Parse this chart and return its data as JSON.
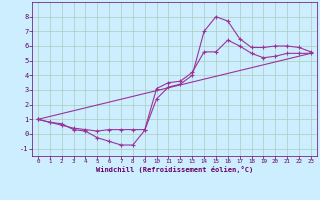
{
  "background_color": "#cceeff",
  "grid_color": "#aaccbb",
  "line_color": "#993399",
  "xlabel": "Windchill (Refroidissement éolien,°C)",
  "xlabel_color": "#660066",
  "tick_color": "#660066",
  "xlim": [
    -0.5,
    23.5
  ],
  "ylim": [
    -1.5,
    9.0
  ],
  "xticks": [
    0,
    1,
    2,
    3,
    4,
    5,
    6,
    7,
    8,
    9,
    10,
    11,
    12,
    13,
    14,
    15,
    16,
    17,
    18,
    19,
    20,
    21,
    22,
    23
  ],
  "yticks": [
    -1,
    0,
    1,
    2,
    3,
    4,
    5,
    6,
    7,
    8
  ],
  "curve1_x": [
    0,
    1,
    2,
    3,
    4,
    5,
    6,
    7,
    8,
    9,
    10,
    11,
    12,
    13,
    14,
    15,
    16,
    17,
    18,
    19,
    20,
    21,
    22,
    23
  ],
  "curve1_y": [
    1.0,
    0.8,
    0.7,
    0.3,
    0.2,
    -0.25,
    -0.5,
    -0.75,
    -0.75,
    0.25,
    2.4,
    3.2,
    3.4,
    4.0,
    7.0,
    8.0,
    7.7,
    6.5,
    5.9,
    5.9,
    6.0,
    6.0,
    5.9,
    5.6
  ],
  "curve2_x": [
    0,
    1,
    2,
    3,
    4,
    5,
    6,
    7,
    8,
    9,
    10,
    11,
    12,
    13,
    14,
    15,
    16,
    17,
    18,
    19,
    20,
    21,
    22,
    23
  ],
  "curve2_y": [
    1.0,
    0.8,
    0.6,
    0.4,
    0.3,
    0.2,
    0.3,
    0.3,
    0.3,
    0.3,
    3.1,
    3.5,
    3.6,
    4.2,
    5.6,
    5.6,
    6.4,
    6.0,
    5.5,
    5.2,
    5.3,
    5.5,
    5.5,
    5.5
  ],
  "curve3_x": [
    0,
    23
  ],
  "curve3_y": [
    1.0,
    5.5
  ]
}
